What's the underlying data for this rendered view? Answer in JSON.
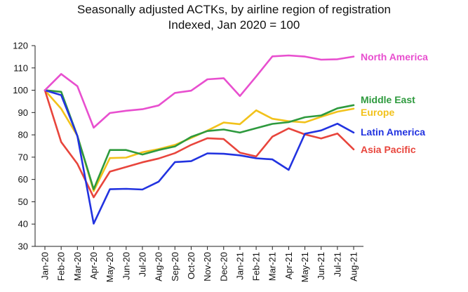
{
  "chart_data": {
    "type": "line",
    "title": "Seasonally adjusted ACTKs, by airline region of registration",
    "subtitle": "Indexed, Jan 2020 = 100",
    "xlabel": "",
    "ylabel": "",
    "ylim": [
      30,
      120
    ],
    "yticks": [
      "30",
      "40",
      "50",
      "60",
      "70",
      "80",
      "90",
      "100",
      "110",
      "120"
    ],
    "categories": [
      "Jan-20",
      "Feb-20",
      "Mar-20",
      "Apr-20",
      "May-20",
      "Jun-20",
      "Jul-20",
      "Aug-20",
      "Sep-20",
      "Oct-20",
      "Nov-20",
      "Dec-20",
      "Jan-21",
      "Feb-21",
      "Mar-21",
      "Apr-21",
      "May-21",
      "Jun-21",
      "Jul-21",
      "Aug-21"
    ],
    "series": [
      {
        "name": "North America",
        "color": "#e84fcf",
        "values": [
          100,
          107.3,
          101.8,
          83.2,
          89.8,
          90.8,
          91.5,
          93.2,
          98.8,
          99.8,
          104.9,
          105.4,
          97.4,
          106.2,
          115.2,
          115.6,
          115.1,
          113.7,
          113.9,
          115.1
        ]
      },
      {
        "name": "Middle East",
        "color": "#2e9a3e",
        "values": [
          100,
          99.3,
          79.5,
          55.6,
          73.2,
          73.2,
          71.2,
          73.2,
          74.8,
          79.1,
          81.7,
          82.4,
          81.0,
          83.0,
          84.9,
          85.7,
          87.9,
          88.7,
          91.9,
          93.3
        ]
      },
      {
        "name": "Europe",
        "color": "#f2c21b",
        "values": [
          100,
          91.7,
          79.6,
          54.8,
          69.6,
          69.8,
          72.2,
          73.6,
          75.5,
          78.6,
          81.9,
          85.5,
          84.8,
          91.0,
          87.2,
          86.1,
          85.6,
          88.1,
          90.4,
          91.7
        ]
      },
      {
        "name": "Latin America",
        "color": "#2233e0",
        "values": [
          100,
          97.8,
          79.5,
          40.2,
          55.6,
          55.8,
          55.5,
          59.0,
          67.8,
          68.2,
          71.7,
          71.5,
          70.8,
          69.5,
          69.0,
          64.3,
          80.5,
          82.0,
          85.0,
          81.0
        ]
      },
      {
        "name": "Asia Pacific",
        "color": "#e8453c",
        "values": [
          100,
          76.8,
          67.0,
          52.0,
          63.5,
          65.6,
          67.7,
          69.4,
          71.8,
          75.5,
          78.5,
          78.1,
          72.0,
          70.3,
          79.2,
          82.9,
          80.2,
          78.4,
          80.6,
          73.5
        ]
      }
    ],
    "legend": "right, labels at line ends"
  }
}
